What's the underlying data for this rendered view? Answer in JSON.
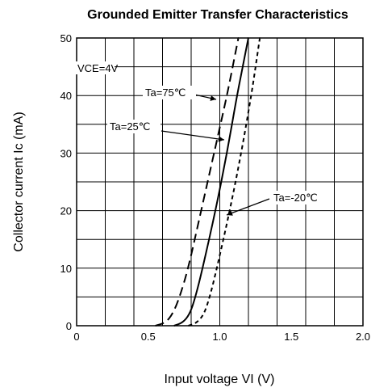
{
  "chart_data": {
    "type": "line",
    "title": "Grounded Emitter Transfer Characteristics",
    "xlabel": "Input voltage  VI (V)",
    "ylabel": "Collector current  Ic  (mA)",
    "xlim": [
      0,
      2.0
    ],
    "ylim": [
      0,
      50
    ],
    "grid": true,
    "x_ticks": [
      "0",
      "0.5",
      "1.0",
      "1.5",
      "2.0"
    ],
    "y_ticks": [
      "0",
      "10",
      "20",
      "30",
      "40",
      "50"
    ],
    "condition": "VCE=4V",
    "series": [
      {
        "name": "Ta=75℃",
        "style": "long-dash",
        "points": [
          [
            0.55,
            0
          ],
          [
            0.62,
            0.5
          ],
          [
            0.67,
            2
          ],
          [
            0.72,
            5
          ],
          [
            0.78,
            10
          ],
          [
            0.87,
            20
          ],
          [
            0.96,
            30
          ],
          [
            1.05,
            40
          ],
          [
            1.09,
            45
          ],
          [
            1.13,
            50
          ]
        ]
      },
      {
        "name": "Ta=25℃",
        "style": "solid",
        "points": [
          [
            0.68,
            0
          ],
          [
            0.74,
            0.5
          ],
          [
            0.79,
            2
          ],
          [
            0.83,
            5
          ],
          [
            0.88,
            10
          ],
          [
            0.97,
            20
          ],
          [
            1.05,
            30
          ],
          [
            1.12,
            40
          ],
          [
            1.16,
            45
          ],
          [
            1.2,
            50
          ]
        ]
      },
      {
        "name": "Ta=-20℃",
        "style": "short-dash",
        "points": [
          [
            0.78,
            0
          ],
          [
            0.84,
            0.5
          ],
          [
            0.89,
            2
          ],
          [
            0.93,
            5
          ],
          [
            0.98,
            10
          ],
          [
            1.07,
            20
          ],
          [
            1.15,
            30
          ],
          [
            1.22,
            40
          ],
          [
            1.25,
            45
          ],
          [
            1.28,
            50
          ]
        ]
      }
    ],
    "annotations": [
      {
        "text": "Ta=75℃",
        "series": "Ta=75℃"
      },
      {
        "text": "Ta=25℃",
        "series": "Ta=25℃"
      },
      {
        "text": "Ta=-20℃",
        "series": "Ta=-20℃"
      }
    ]
  }
}
